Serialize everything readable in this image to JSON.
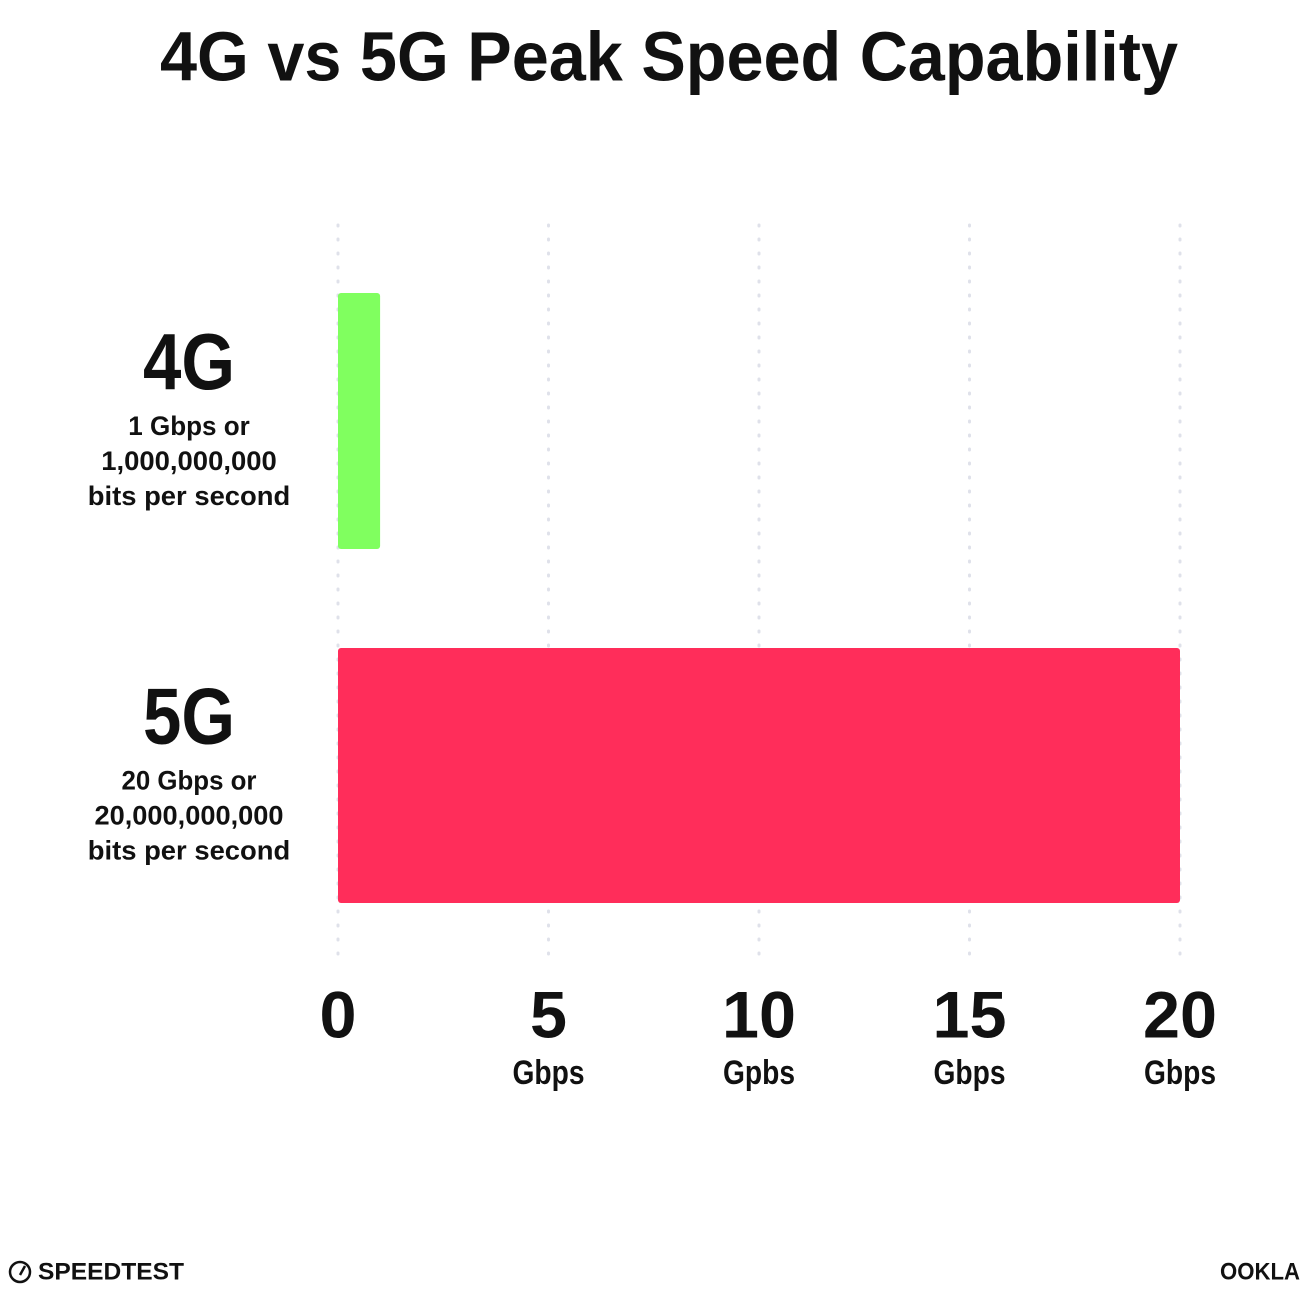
{
  "chart_data": {
    "type": "hbar",
    "title": "4G vs 5G Peak Speed Capability",
    "categories": [
      "4G",
      "5G"
    ],
    "category_notes": [
      [
        "1 Gbps or",
        "1,000,000,000",
        "bits per second"
      ],
      [
        "20 Gbps or",
        "20,000,000,000",
        "bits per second"
      ]
    ],
    "values": [
      1,
      20
    ],
    "colors": [
      "#80ff5f",
      "#ff2d5a"
    ],
    "xlim": [
      0,
      20
    ],
    "xticks": [
      0,
      5,
      10,
      15,
      20
    ],
    "xtick_units": [
      null,
      "Gbps",
      "Gpbs",
      "Gbps",
      "Gbps"
    ],
    "grid": true
  },
  "branding": {
    "left": "SPEEDTEST",
    "right": "OOKLA"
  }
}
